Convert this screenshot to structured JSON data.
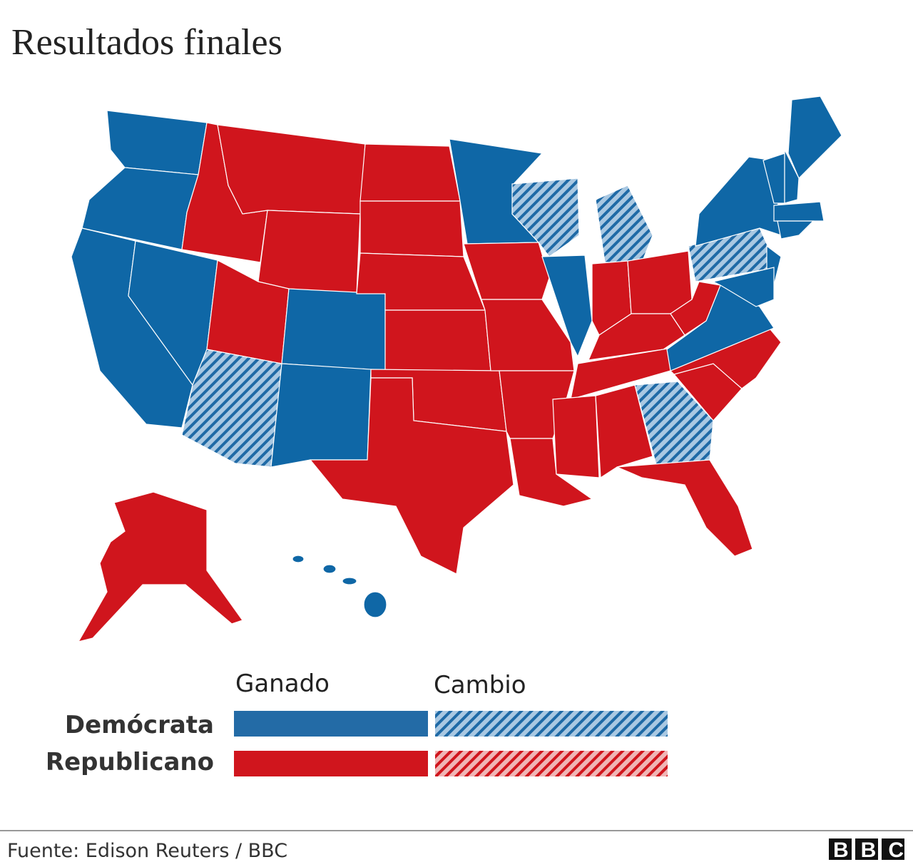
{
  "title": "Resultados finales",
  "legend": {
    "columns": [
      "Ganado",
      "Cambio"
    ],
    "rows": [
      "Demócrata",
      "Republicano"
    ]
  },
  "source": "Fuente: Edison Reuters / BBC",
  "logo": "BBC"
}
